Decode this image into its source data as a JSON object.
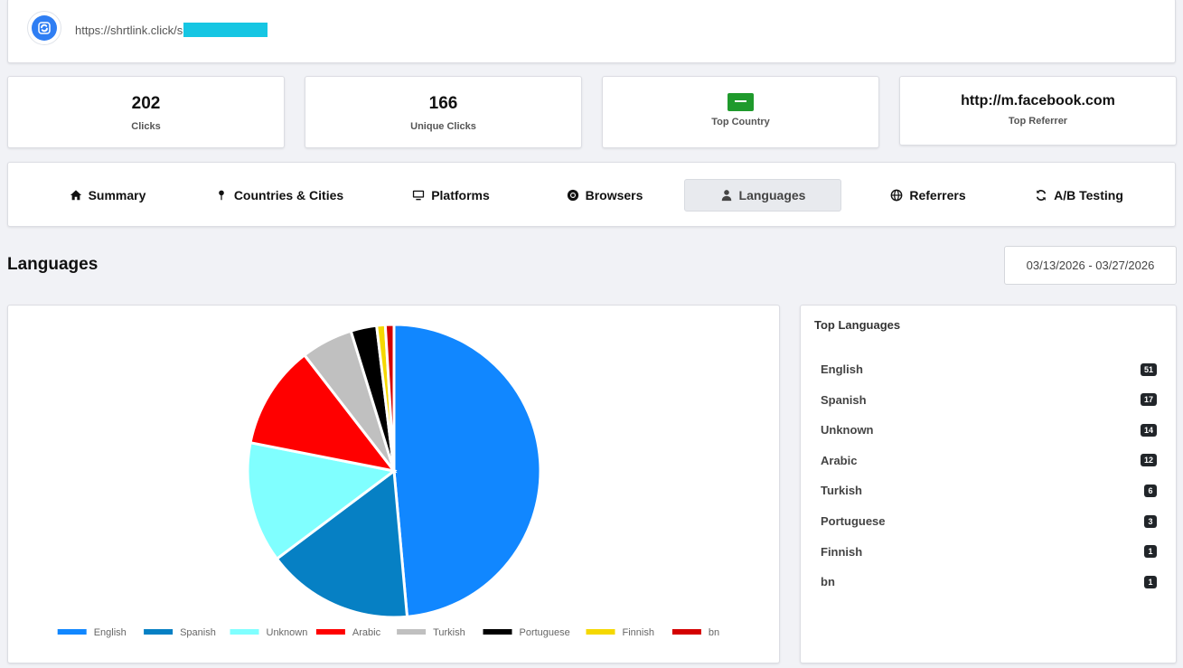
{
  "header": {
    "short_url_prefix": "https://shrtlink.click/s"
  },
  "stats": {
    "clicks": {
      "value": "202",
      "label": "Clicks"
    },
    "unique": {
      "value": "166",
      "label": "Unique Clicks"
    },
    "country": {
      "label": "Top Country",
      "flag_color": "#1f9a2c"
    },
    "referrer": {
      "value": "http://m.facebook.com",
      "label": "Top Referrer"
    }
  },
  "tabs": [
    {
      "label": "Summary",
      "icon": "home-icon"
    },
    {
      "label": "Countries & Cities",
      "icon": "map-pin-icon"
    },
    {
      "label": "Platforms",
      "icon": "monitor-icon"
    },
    {
      "label": "Browsers",
      "icon": "chrome-icon"
    },
    {
      "label": "Languages",
      "icon": "user-icon",
      "active": true
    },
    {
      "label": "Referrers",
      "icon": "globe-icon"
    },
    {
      "label": "A/B Testing",
      "icon": "refresh-icon"
    }
  ],
  "section": {
    "title": "Languages",
    "date_range": "03/13/2026 - 03/27/2026"
  },
  "top_languages": {
    "title": "Top Languages",
    "items": [
      {
        "name": "English",
        "count": "51"
      },
      {
        "name": "Spanish",
        "count": "17"
      },
      {
        "name": "Unknown",
        "count": "14"
      },
      {
        "name": "Arabic",
        "count": "12"
      },
      {
        "name": "Turkish",
        "count": "6"
      },
      {
        "name": "Portuguese",
        "count": "3"
      },
      {
        "name": "Finnish",
        "count": "1"
      },
      {
        "name": "bn",
        "count": "1"
      }
    ]
  },
  "chart_data": {
    "type": "pie",
    "title": "",
    "categories": [
      "English",
      "Spanish",
      "Unknown",
      "Arabic",
      "Turkish",
      "Portuguese",
      "Finnish",
      "bn"
    ],
    "values": [
      51,
      17,
      14,
      12,
      6,
      3,
      1,
      1
    ],
    "colors": [
      "#1187ff",
      "#0680c4",
      "#80ffff",
      "#ff0000",
      "#c0c0c0",
      "#000000",
      "#f5d800",
      "#d40000"
    ],
    "legend": "bottom"
  }
}
